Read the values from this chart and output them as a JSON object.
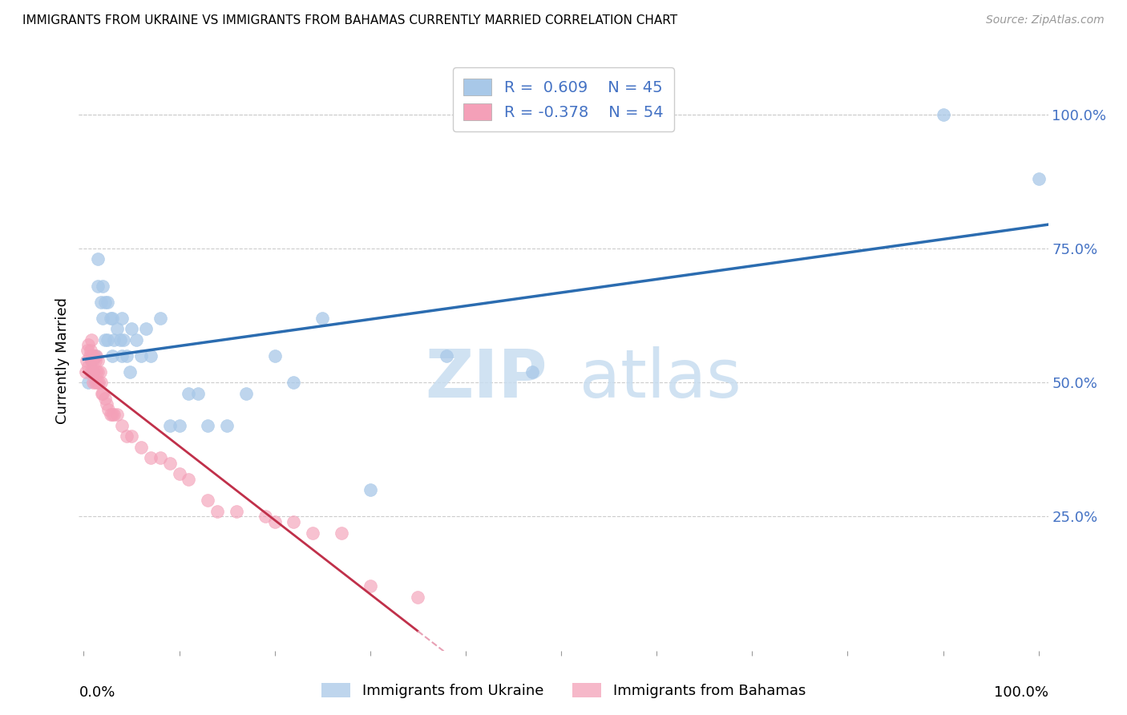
{
  "title": "IMMIGRANTS FROM UKRAINE VS IMMIGRANTS FROM BAHAMAS CURRENTLY MARRIED CORRELATION CHART",
  "source": "Source: ZipAtlas.com",
  "ylabel": "Currently Married",
  "ytick_labels": [
    "100.0%",
    "75.0%",
    "50.0%",
    "25.0%"
  ],
  "ytick_positions": [
    1.0,
    0.75,
    0.5,
    0.25
  ],
  "ukraine_R": 0.609,
  "ukraine_N": 45,
  "bahamas_R": -0.378,
  "bahamas_N": 54,
  "ukraine_color": "#a8c8e8",
  "bahamas_color": "#f4a0b8",
  "ukraine_line_color": "#2b6cb0",
  "bahamas_line_color_solid": "#c0304a",
  "bahamas_line_color_dash": "#e8a0b4",
  "legend_ukraine": "Immigrants from Ukraine",
  "legend_bahamas": "Immigrants from Bahamas",
  "legend_text_color": "#4472c4",
  "ukraine_x": [
    0.005,
    0.008,
    0.01,
    0.012,
    0.015,
    0.015,
    0.018,
    0.02,
    0.02,
    0.022,
    0.022,
    0.025,
    0.025,
    0.028,
    0.03,
    0.03,
    0.032,
    0.035,
    0.038,
    0.04,
    0.04,
    0.042,
    0.045,
    0.048,
    0.05,
    0.055,
    0.06,
    0.065,
    0.07,
    0.08,
    0.09,
    0.1,
    0.11,
    0.12,
    0.13,
    0.15,
    0.17,
    0.2,
    0.22,
    0.25,
    0.3,
    0.38,
    0.47,
    0.9,
    1.0
  ],
  "ukraine_y": [
    0.5,
    0.54,
    0.52,
    0.55,
    0.68,
    0.73,
    0.65,
    0.68,
    0.62,
    0.65,
    0.58,
    0.58,
    0.65,
    0.62,
    0.55,
    0.62,
    0.58,
    0.6,
    0.58,
    0.55,
    0.62,
    0.58,
    0.55,
    0.52,
    0.6,
    0.58,
    0.55,
    0.6,
    0.55,
    0.62,
    0.42,
    0.42,
    0.48,
    0.48,
    0.42,
    0.42,
    0.48,
    0.55,
    0.5,
    0.62,
    0.3,
    0.55,
    0.52,
    1.0,
    0.88
  ],
  "bahamas_x": [
    0.002,
    0.003,
    0.004,
    0.005,
    0.005,
    0.006,
    0.007,
    0.007,
    0.008,
    0.008,
    0.009,
    0.009,
    0.01,
    0.01,
    0.011,
    0.011,
    0.012,
    0.012,
    0.013,
    0.013,
    0.014,
    0.015,
    0.015,
    0.016,
    0.017,
    0.018,
    0.019,
    0.02,
    0.022,
    0.024,
    0.026,
    0.028,
    0.03,
    0.032,
    0.035,
    0.04,
    0.045,
    0.05,
    0.06,
    0.07,
    0.08,
    0.09,
    0.1,
    0.11,
    0.13,
    0.14,
    0.16,
    0.19,
    0.2,
    0.22,
    0.24,
    0.27,
    0.3,
    0.35
  ],
  "bahamas_y": [
    0.52,
    0.54,
    0.56,
    0.53,
    0.57,
    0.55,
    0.52,
    0.56,
    0.54,
    0.58,
    0.52,
    0.55,
    0.5,
    0.54,
    0.52,
    0.55,
    0.5,
    0.54,
    0.52,
    0.55,
    0.5,
    0.52,
    0.54,
    0.5,
    0.52,
    0.5,
    0.48,
    0.48,
    0.47,
    0.46,
    0.45,
    0.44,
    0.44,
    0.44,
    0.44,
    0.42,
    0.4,
    0.4,
    0.38,
    0.36,
    0.36,
    0.35,
    0.33,
    0.32,
    0.28,
    0.26,
    0.26,
    0.25,
    0.24,
    0.24,
    0.22,
    0.22,
    0.12,
    0.1
  ],
  "xlim": [
    -0.005,
    1.01
  ],
  "ylim": [
    0.0,
    1.08
  ]
}
